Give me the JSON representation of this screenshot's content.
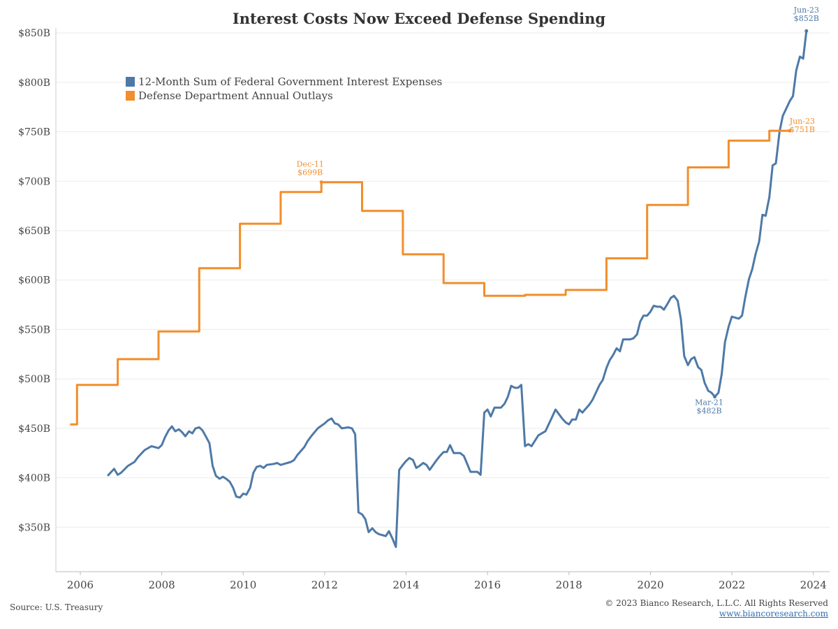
{
  "chart_data": {
    "type": "line",
    "title": "Interest Costs Now Exceed Defense Spending",
    "xlabel": "",
    "ylabel": "",
    "xlim": [
      2005.4,
      2024.4
    ],
    "ylim": [
      305,
      855
    ],
    "y_ticks": [
      {
        "value": 350,
        "label": "$350B"
      },
      {
        "value": 400,
        "label": "$400B"
      },
      {
        "value": 450,
        "label": "$450B"
      },
      {
        "value": 500,
        "label": "$500B"
      },
      {
        "value": 550,
        "label": "$550B"
      },
      {
        "value": 600,
        "label": "$600B"
      },
      {
        "value": 650,
        "label": "$650B"
      },
      {
        "value": 700,
        "label": "$700B"
      },
      {
        "value": 750,
        "label": "$750B"
      },
      {
        "value": 800,
        "label": "$800B"
      },
      {
        "value": 850,
        "label": "$850B"
      }
    ],
    "x_ticks": [
      {
        "value": 2006,
        "label": "2006"
      },
      {
        "value": 2008,
        "label": "2008"
      },
      {
        "value": 2010,
        "label": "2010"
      },
      {
        "value": 2012,
        "label": "2012"
      },
      {
        "value": 2014,
        "label": "2014"
      },
      {
        "value": 2016,
        "label": "2016"
      },
      {
        "value": 2018,
        "label": "2018"
      },
      {
        "value": 2020,
        "label": "2020"
      },
      {
        "value": 2022,
        "label": "2022"
      },
      {
        "value": 2024,
        "label": "2024"
      }
    ],
    "grid": {
      "horizontal": true,
      "vertical": false
    },
    "legend_position": "top-left",
    "series": [
      {
        "name": "12-Month Sum of Federal Government Interest Expenses",
        "color": "#4e79a7",
        "points": [
          [
            2006.67,
            402
          ],
          [
            2006.83,
            409
          ],
          [
            2006.92,
            403
          ],
          [
            2007.0,
            405
          ],
          [
            2007.17,
            412
          ],
          [
            2007.33,
            416
          ],
          [
            2007.42,
            421
          ],
          [
            2007.58,
            428
          ],
          [
            2007.75,
            432
          ],
          [
            2007.92,
            430
          ],
          [
            2008.0,
            433
          ],
          [
            2008.08,
            441
          ],
          [
            2008.17,
            448
          ],
          [
            2008.25,
            452
          ],
          [
            2008.33,
            447
          ],
          [
            2008.42,
            449
          ],
          [
            2008.5,
            446
          ],
          [
            2008.58,
            442
          ],
          [
            2008.67,
            447
          ],
          [
            2008.75,
            445
          ],
          [
            2008.83,
            450
          ],
          [
            2008.92,
            451
          ],
          [
            2009.0,
            448
          ],
          [
            2009.08,
            442
          ],
          [
            2009.17,
            435
          ],
          [
            2009.25,
            412
          ],
          [
            2009.33,
            402
          ],
          [
            2009.42,
            399
          ],
          [
            2009.5,
            401
          ],
          [
            2009.58,
            399
          ],
          [
            2009.67,
            396
          ],
          [
            2009.75,
            390
          ],
          [
            2009.83,
            381
          ],
          [
            2009.92,
            380
          ],
          [
            2010.0,
            384
          ],
          [
            2010.08,
            383
          ],
          [
            2010.17,
            390
          ],
          [
            2010.25,
            405
          ],
          [
            2010.33,
            411
          ],
          [
            2010.42,
            412
          ],
          [
            2010.5,
            410
          ],
          [
            2010.58,
            413
          ],
          [
            2010.75,
            414
          ],
          [
            2010.83,
            415
          ],
          [
            2010.92,
            413
          ],
          [
            2011.0,
            414
          ],
          [
            2011.17,
            416
          ],
          [
            2011.25,
            418
          ],
          [
            2011.33,
            423
          ],
          [
            2011.5,
            431
          ],
          [
            2011.58,
            437
          ],
          [
            2011.67,
            442
          ],
          [
            2011.83,
            450
          ],
          [
            2012.0,
            455
          ],
          [
            2012.08,
            458
          ],
          [
            2012.17,
            460
          ],
          [
            2012.25,
            455
          ],
          [
            2012.33,
            454
          ],
          [
            2012.42,
            450
          ],
          [
            2012.58,
            451
          ],
          [
            2012.67,
            450
          ],
          [
            2012.75,
            444
          ],
          [
            2012.83,
            365
          ],
          [
            2012.92,
            363
          ],
          [
            2013.0,
            358
          ],
          [
            2013.08,
            345
          ],
          [
            2013.17,
            349
          ],
          [
            2013.25,
            345
          ],
          [
            2013.33,
            343
          ],
          [
            2013.5,
            341
          ],
          [
            2013.58,
            346
          ],
          [
            2013.67,
            338
          ],
          [
            2013.75,
            330
          ],
          [
            2013.83,
            408
          ],
          [
            2013.92,
            413
          ],
          [
            2014.0,
            417
          ],
          [
            2014.08,
            420
          ],
          [
            2014.17,
            418
          ],
          [
            2014.25,
            410
          ],
          [
            2014.33,
            412
          ],
          [
            2014.42,
            415
          ],
          [
            2014.5,
            413
          ],
          [
            2014.58,
            408
          ],
          [
            2014.75,
            418
          ],
          [
            2014.83,
            422
          ],
          [
            2014.92,
            426
          ],
          [
            2015.0,
            426
          ],
          [
            2015.08,
            433
          ],
          [
            2015.17,
            425
          ],
          [
            2015.33,
            425
          ],
          [
            2015.42,
            422
          ],
          [
            2015.58,
            406
          ],
          [
            2015.67,
            406
          ],
          [
            2015.75,
            406
          ],
          [
            2015.83,
            403
          ],
          [
            2015.92,
            466
          ],
          [
            2016.0,
            469
          ],
          [
            2016.08,
            462
          ],
          [
            2016.17,
            471
          ],
          [
            2016.33,
            471
          ],
          [
            2016.42,
            475
          ],
          [
            2016.5,
            482
          ],
          [
            2016.58,
            493
          ],
          [
            2016.67,
            491
          ],
          [
            2016.75,
            491
          ],
          [
            2016.83,
            494
          ],
          [
            2016.92,
            432
          ],
          [
            2017.0,
            434
          ],
          [
            2017.08,
            432
          ],
          [
            2017.25,
            443
          ],
          [
            2017.42,
            447
          ],
          [
            2017.58,
            461
          ],
          [
            2017.67,
            469
          ],
          [
            2017.83,
            460
          ],
          [
            2017.92,
            456
          ],
          [
            2018.0,
            454
          ],
          [
            2018.08,
            459
          ],
          [
            2018.17,
            459
          ],
          [
            2018.25,
            469
          ],
          [
            2018.33,
            466
          ],
          [
            2018.5,
            474
          ],
          [
            2018.58,
            479
          ],
          [
            2018.75,
            494
          ],
          [
            2018.83,
            499
          ],
          [
            2018.92,
            511
          ],
          [
            2019.0,
            519
          ],
          [
            2019.08,
            524
          ],
          [
            2019.17,
            531
          ],
          [
            2019.25,
            528
          ],
          [
            2019.33,
            540
          ],
          [
            2019.5,
            540
          ],
          [
            2019.58,
            541
          ],
          [
            2019.67,
            545
          ],
          [
            2019.75,
            558
          ],
          [
            2019.83,
            564
          ],
          [
            2019.92,
            564
          ],
          [
            2020.0,
            568
          ],
          [
            2020.08,
            574
          ],
          [
            2020.17,
            573
          ],
          [
            2020.25,
            573
          ],
          [
            2020.33,
            570
          ],
          [
            2020.42,
            576
          ],
          [
            2020.5,
            582
          ],
          [
            2020.58,
            584
          ],
          [
            2020.67,
            579
          ],
          [
            2020.75,
            560
          ],
          [
            2020.83,
            523
          ],
          [
            2020.92,
            514
          ],
          [
            2021.0,
            520
          ],
          [
            2021.08,
            522
          ],
          [
            2021.17,
            512
          ],
          [
            2021.25,
            509
          ],
          [
            2021.33,
            496
          ],
          [
            2021.42,
            488
          ],
          [
            2021.5,
            486
          ],
          [
            2021.58,
            482
          ],
          [
            2021.67,
            486
          ],
          [
            2021.75,
            505
          ],
          [
            2021.83,
            537
          ],
          [
            2021.92,
            553
          ],
          [
            2022.0,
            563
          ],
          [
            2022.08,
            562
          ],
          [
            2022.17,
            561
          ],
          [
            2022.25,
            564
          ],
          [
            2022.33,
            583
          ],
          [
            2022.42,
            601
          ],
          [
            2022.5,
            611
          ],
          [
            2022.58,
            626
          ],
          [
            2022.67,
            639
          ],
          [
            2022.75,
            666
          ],
          [
            2022.83,
            665
          ],
          [
            2022.92,
            684
          ],
          [
            2023.0,
            716
          ],
          [
            2023.08,
            718
          ],
          [
            2023.17,
            750
          ],
          [
            2023.25,
            766
          ],
          [
            2023.33,
            773
          ],
          [
            2023.42,
            781
          ],
          [
            2023.5,
            786
          ],
          [
            2023.58,
            812
          ],
          [
            2023.67,
            826
          ],
          [
            2023.75,
            824
          ],
          [
            2023.83,
            852
          ]
        ]
      },
      {
        "name": "Defense Department Annual Outlays",
        "color": "#f28e2b",
        "points": [
          [
            2005.75,
            454
          ],
          [
            2005.92,
            454
          ],
          [
            2005.92,
            494
          ],
          [
            2006.92,
            494
          ],
          [
            2006.92,
            520
          ],
          [
            2007.92,
            520
          ],
          [
            2007.92,
            548
          ],
          [
            2008.92,
            548
          ],
          [
            2008.92,
            612
          ],
          [
            2009.92,
            612
          ],
          [
            2009.92,
            657
          ],
          [
            2010.92,
            657
          ],
          [
            2010.92,
            689
          ],
          [
            2011.92,
            689
          ],
          [
            2011.92,
            699
          ],
          [
            2012.92,
            699
          ],
          [
            2012.92,
            670
          ],
          [
            2013.92,
            670
          ],
          [
            2013.92,
            626
          ],
          [
            2014.92,
            626
          ],
          [
            2014.92,
            597
          ],
          [
            2015.92,
            597
          ],
          [
            2015.92,
            584
          ],
          [
            2016.92,
            584
          ],
          [
            2016.92,
            585
          ],
          [
            2017.92,
            585
          ],
          [
            2017.92,
            590
          ],
          [
            2018.92,
            590
          ],
          [
            2018.92,
            622
          ],
          [
            2019.92,
            622
          ],
          [
            2019.92,
            676
          ],
          [
            2020.92,
            676
          ],
          [
            2020.92,
            714
          ],
          [
            2021.92,
            714
          ],
          [
            2021.92,
            741
          ],
          [
            2022.92,
            741
          ],
          [
            2022.92,
            751
          ],
          [
            2023.42,
            751
          ]
        ]
      }
    ],
    "annotations": [
      {
        "series": 0,
        "x": 2023.83,
        "y": 852,
        "label_line1": "Jun-23",
        "label_line2": "$852B"
      },
      {
        "series": 1,
        "x": 2023.42,
        "y": 751,
        "label_line1": "Jun-23",
        "label_line2": "$751B"
      },
      {
        "series": 1,
        "x": 2011.92,
        "y": 699,
        "label_line1": "Dec-11",
        "label_line2": "$699B"
      },
      {
        "series": 0,
        "x": 2021.58,
        "y": 482,
        "label_line1": "Mar-21",
        "label_line2": "$482B"
      }
    ]
  },
  "footer": {
    "source": "Source: U.S. Treasury",
    "copyright": "© 2023 Bianco Research, L.L.C. All Rights Reserved",
    "link": "www.biancoresearch.com"
  }
}
